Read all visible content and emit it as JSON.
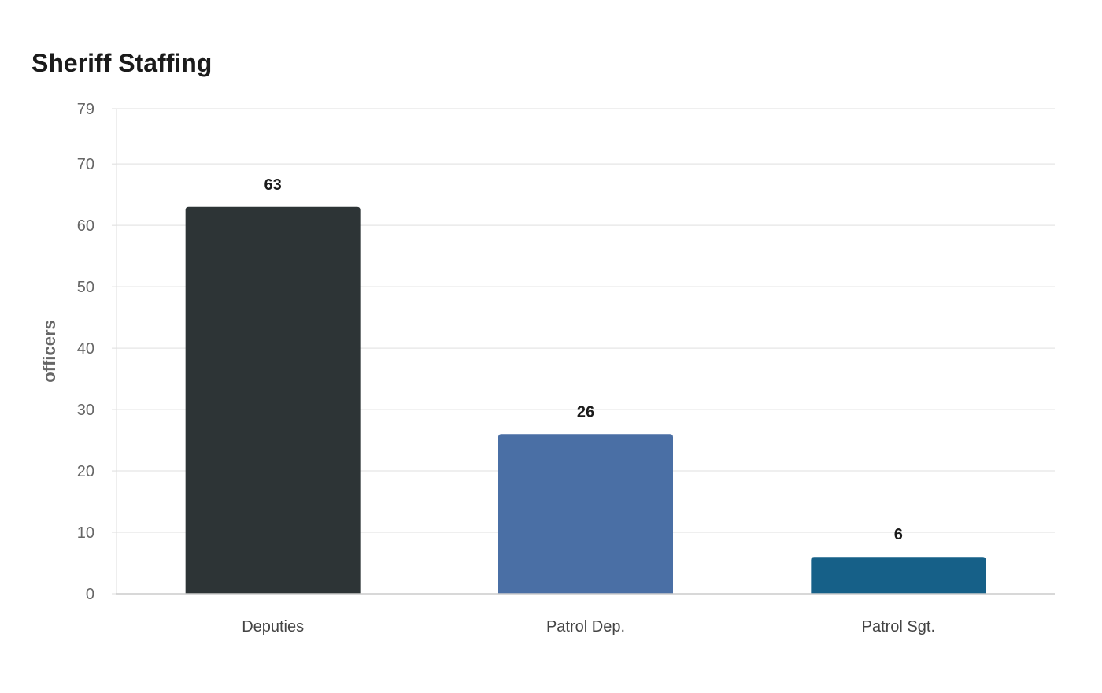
{
  "chart_data": {
    "type": "bar",
    "title": "Sheriff Staffing",
    "xlabel": "",
    "ylabel": "officers",
    "categories": [
      "Deputies",
      "Patrol Dep.",
      "Patrol Sgt."
    ],
    "values": [
      63,
      26,
      6
    ],
    "ylim": [
      0,
      79
    ],
    "yticks": [
      0,
      10,
      20,
      30,
      40,
      50,
      60,
      70,
      79
    ],
    "grid": true,
    "legend": "none",
    "colors": [
      "#2d3436",
      "#4a6fa5",
      "#166088"
    ]
  }
}
